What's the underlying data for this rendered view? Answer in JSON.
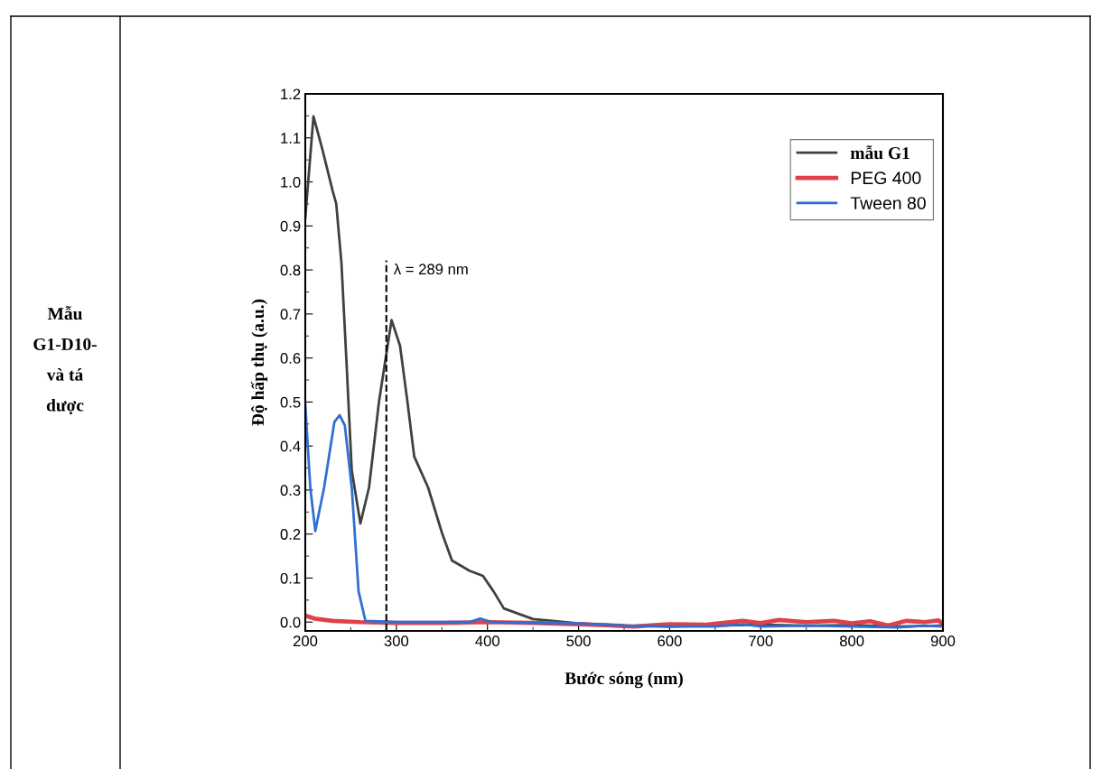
{
  "chart_data": {
    "type": "line",
    "xlabel": "Bước sóng (nm)",
    "ylabel": "Độ hấp thụ (a.u.)",
    "xlim": [
      200,
      900
    ],
    "xticks": [
      200,
      300,
      400,
      500,
      600,
      700,
      800,
      900
    ],
    "ylim": [
      -0.02,
      1.2
    ],
    "yticks": [
      {
        "value": 0,
        "label": "0.0"
      },
      {
        "value": 0.1,
        "label": "0.1"
      },
      {
        "value": 0.2,
        "label": "0.2"
      },
      {
        "value": 0.3,
        "label": "0.3"
      },
      {
        "value": 0.4,
        "label": "0.4"
      },
      {
        "value": 0.5,
        "label": "0.5"
      },
      {
        "value": 0.6,
        "label": "0.6"
      },
      {
        "value": 0.7,
        "label": "0.7"
      },
      {
        "value": 0.8,
        "label": "0.8"
      },
      {
        "value": 0.9,
        "label": "0.9"
      },
      {
        "value": 1.0,
        "label": "1.0"
      },
      {
        "value": 1.1,
        "label": "1.1"
      },
      {
        "value": 1.2,
        "label": "1.2"
      }
    ],
    "grid": false,
    "legend": "top right",
    "marker": "none",
    "line_style": "solid",
    "ref_lines": [
      {
        "axis": "x",
        "value": 289,
        "label": "λ = 289 nm",
        "color": "#000000",
        "line_style": "dashed"
      }
    ],
    "annotations": [
      "Mẫu\nG1-D10-\nvà tá\ndược"
    ],
    "series": [
      {
        "name": "mẫu G1",
        "color": "#404040",
        "x": [
          200,
          209,
          218.6,
          230,
          234,
          239.7,
          245.5,
          251,
          260.5,
          270,
          281,
          294.7,
          304,
          312,
          319.6,
          334.8,
          350,
          361,
          380,
          395,
          406.6,
          418,
          450,
          500,
          550,
          600,
          650,
          700,
          750,
          800,
          850,
          900
        ],
        "values": [
          0.918,
          1.149,
          1.075,
          0.98,
          0.95,
          0.816,
          0.58,
          0.345,
          0.224,
          0.306,
          0.502,
          0.686,
          0.628,
          0.503,
          0.376,
          0.306,
          0.203,
          0.14,
          0.117,
          0.105,
          0.07,
          0.031,
          0.007,
          -0.003,
          -0.008,
          -0.01,
          -0.008,
          -0.006,
          -0.008,
          -0.007,
          -0.01,
          -0.008
        ]
      },
      {
        "name": "PEG 400",
        "color": "#e0404a",
        "x": [
          200,
          210,
          230,
          260,
          300,
          350,
          400,
          450,
          500,
          530,
          560,
          600,
          640,
          680,
          700,
          720,
          750,
          780,
          800,
          820,
          840,
          860,
          880,
          895,
          900
        ],
        "values": [
          0.015,
          0.008,
          0.003,
          0.0,
          -0.002,
          -0.002,
          0.0,
          -0.002,
          -0.005,
          -0.007,
          -0.01,
          -0.005,
          -0.006,
          0.003,
          -0.002,
          0.005,
          0.0,
          0.003,
          -0.003,
          0.002,
          -0.008,
          0.003,
          0.0,
          0.004,
          -0.005
        ]
      },
      {
        "name": "Tween 80",
        "color": "#2f6fd0",
        "x": [
          200,
          205.5,
          211,
          220.7,
          232,
          237.7,
          243.4,
          251,
          258.5,
          266,
          300,
          380,
          392,
          405,
          450,
          500,
          550,
          600,
          650,
          680,
          700,
          750,
          800,
          850,
          880,
          900
        ],
        "values": [
          0.494,
          0.306,
          0.207,
          0.306,
          0.455,
          0.47,
          0.447,
          0.306,
          0.07,
          0.003,
          0.0,
          0.0,
          0.008,
          0.0,
          -0.002,
          -0.003,
          -0.008,
          -0.01,
          -0.01,
          -0.005,
          -0.01,
          -0.008,
          -0.01,
          -0.012,
          -0.008,
          -0.01
        ]
      }
    ]
  }
}
